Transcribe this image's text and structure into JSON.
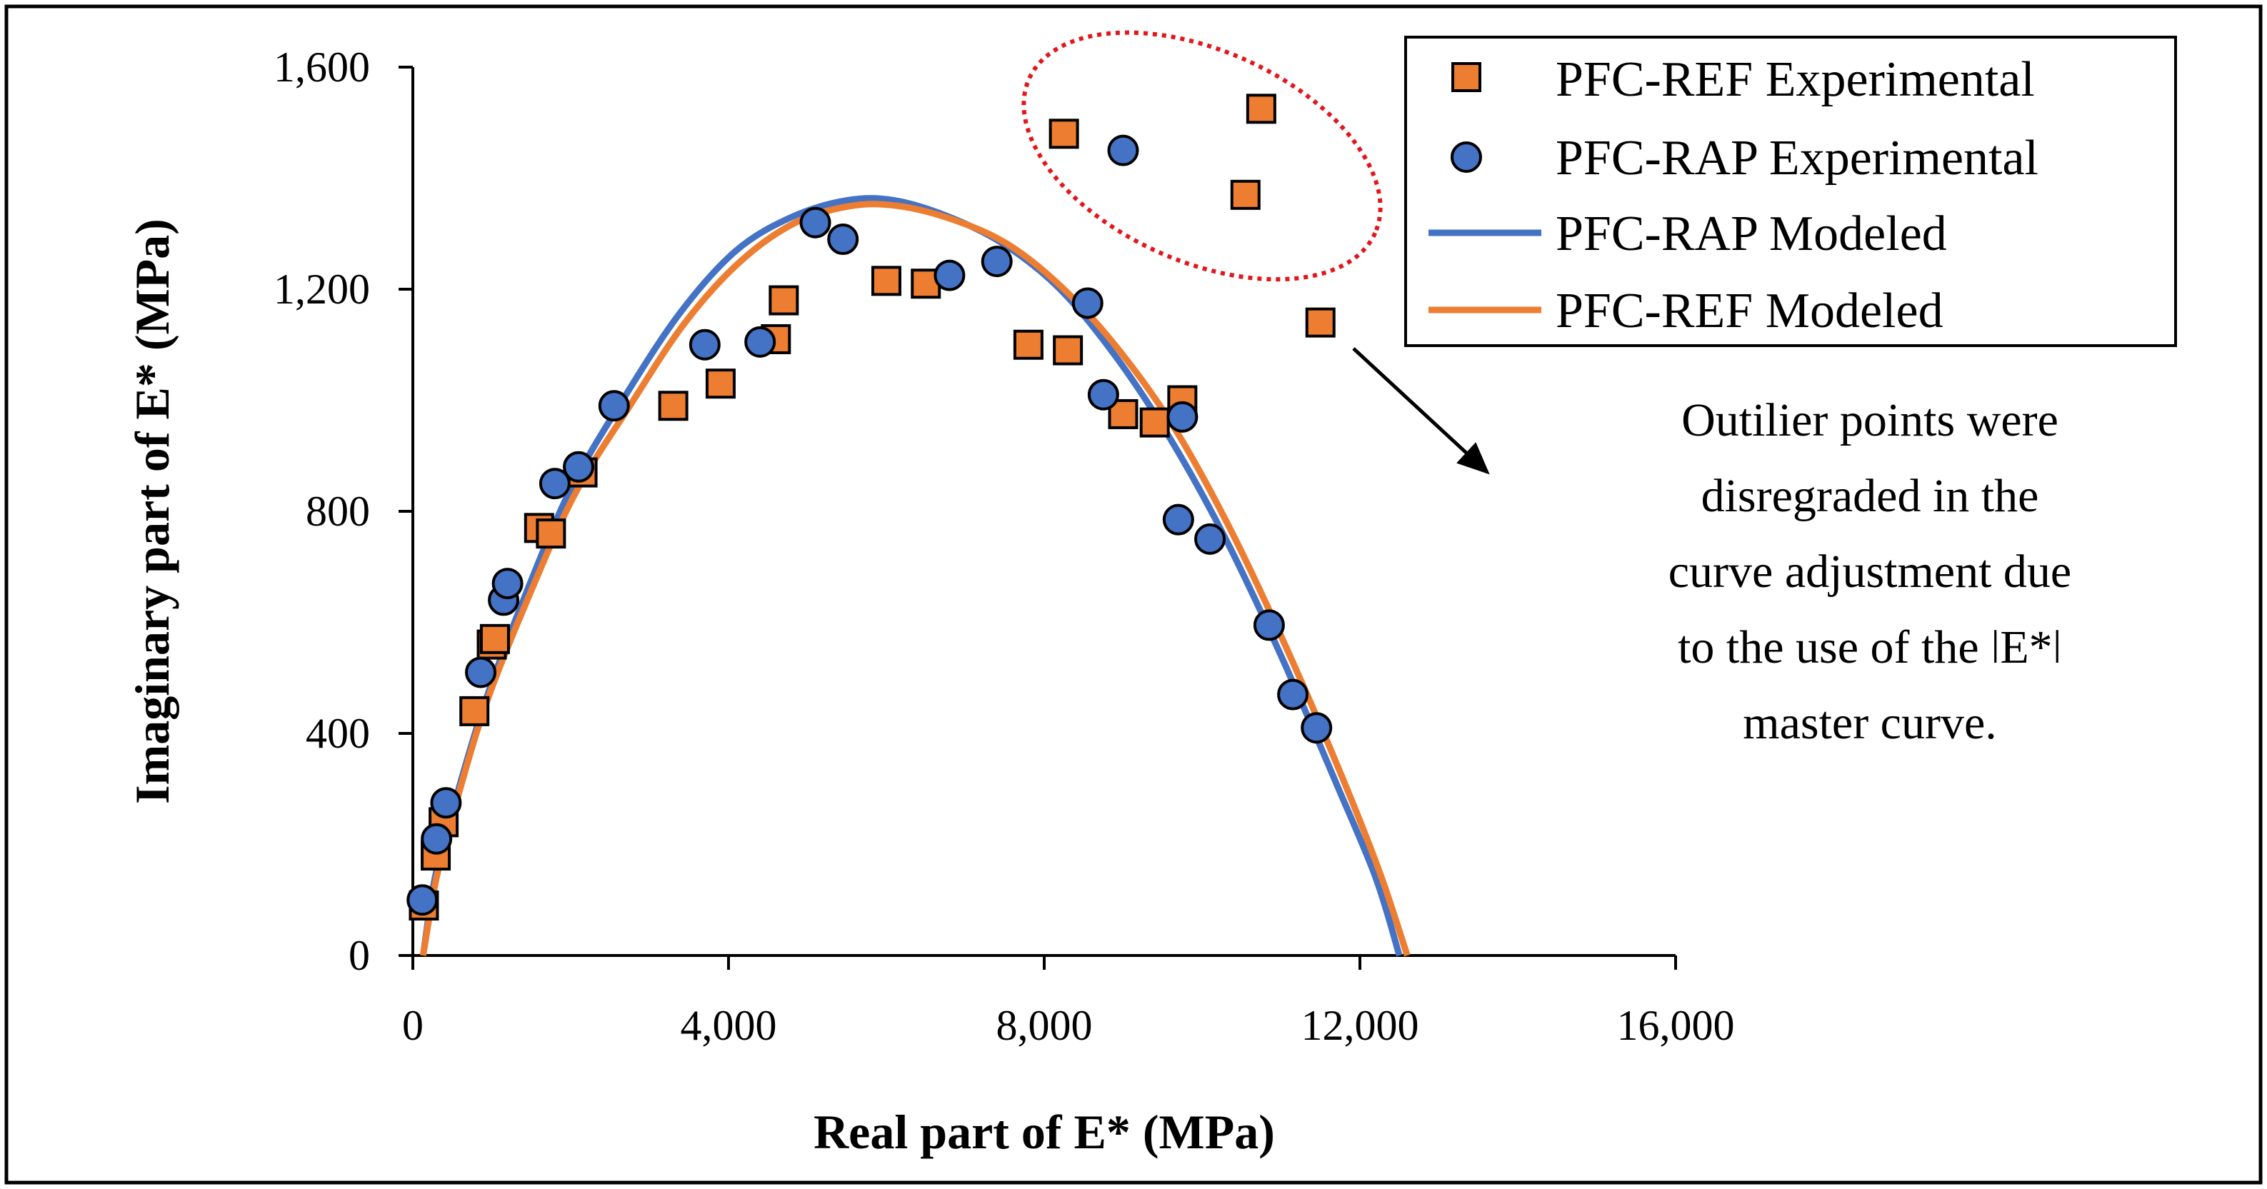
{
  "chart_data": {
    "type": "scatter",
    "xlabel": "Real part of E* (MPa)",
    "ylabel": "Imaginary part of E* (MPa)",
    "xlim": [
      0,
      16000
    ],
    "ylim": [
      0,
      1600
    ],
    "x_ticks": [
      "0",
      "4,000",
      "8,000",
      "12,000",
      "16,000"
    ],
    "y_ticks": [
      "0",
      "400",
      "800",
      "1,200",
      "1,600"
    ],
    "x_tick_values": [
      0,
      4000,
      8000,
      12000,
      16000
    ],
    "y_tick_values": [
      0,
      400,
      800,
      1200,
      1600
    ],
    "series": [
      {
        "name": "PFC-REF Experimental",
        "kind": "markers",
        "marker": "square",
        "color": "#ED7D31",
        "points": [
          [
            140,
            90
          ],
          [
            290,
            180
          ],
          [
            390,
            240
          ],
          [
            780,
            440
          ],
          [
            1000,
            560
          ],
          [
            1040,
            570
          ],
          [
            1600,
            770
          ],
          [
            1750,
            760
          ],
          [
            2150,
            870
          ],
          [
            3300,
            990
          ],
          [
            3900,
            1030
          ],
          [
            4600,
            1110
          ],
          [
            4700,
            1180
          ],
          [
            6000,
            1215
          ],
          [
            6500,
            1210
          ],
          [
            7800,
            1100
          ],
          [
            8300,
            1090
          ],
          [
            9000,
            975
          ],
          [
            9400,
            960
          ],
          [
            9750,
            1000
          ],
          [
            8250,
            1480
          ],
          [
            10550,
            1370
          ],
          [
            10750,
            1525
          ],
          [
            11500,
            1140
          ]
        ]
      },
      {
        "name": "PFC-RAP Experimental",
        "kind": "markers",
        "marker": "circle",
        "color": "#4472C4",
        "points": [
          [
            120,
            100
          ],
          [
            300,
            210
          ],
          [
            420,
            275
          ],
          [
            860,
            510
          ],
          [
            1150,
            640
          ],
          [
            1200,
            670
          ],
          [
            1800,
            850
          ],
          [
            2100,
            880
          ],
          [
            2550,
            990
          ],
          [
            3700,
            1100
          ],
          [
            4400,
            1105
          ],
          [
            5100,
            1320
          ],
          [
            5450,
            1290
          ],
          [
            6800,
            1225
          ],
          [
            7400,
            1250
          ],
          [
            8550,
            1175
          ],
          [
            8750,
            1010
          ],
          [
            9750,
            970
          ],
          [
            9700,
            785
          ],
          [
            10100,
            750
          ],
          [
            10850,
            595
          ],
          [
            11150,
            470
          ],
          [
            11450,
            410
          ],
          [
            9000,
            1450
          ]
        ]
      },
      {
        "name": "PFC-RAP Modeled",
        "kind": "line",
        "color": "#4472C4",
        "points": [
          [
            130,
            0
          ],
          [
            280,
            140
          ],
          [
            500,
            260
          ],
          [
            900,
            450
          ],
          [
            1400,
            640
          ],
          [
            2000,
            840
          ],
          [
            2700,
            1010
          ],
          [
            3400,
            1160
          ],
          [
            4100,
            1270
          ],
          [
            4800,
            1330
          ],
          [
            5500,
            1360
          ],
          [
            6100,
            1360
          ],
          [
            6800,
            1330
          ],
          [
            7500,
            1280
          ],
          [
            8200,
            1200
          ],
          [
            8900,
            1080
          ],
          [
            9600,
            930
          ],
          [
            10300,
            750
          ],
          [
            11000,
            540
          ],
          [
            11700,
            310
          ],
          [
            12200,
            140
          ],
          [
            12500,
            0
          ]
        ]
      },
      {
        "name": "PFC-REF Modeled",
        "kind": "line",
        "color": "#ED7D31",
        "points": [
          [
            130,
            0
          ],
          [
            300,
            140
          ],
          [
            520,
            260
          ],
          [
            920,
            450
          ],
          [
            1450,
            640
          ],
          [
            2050,
            830
          ],
          [
            2750,
            990
          ],
          [
            3450,
            1140
          ],
          [
            4150,
            1250
          ],
          [
            4850,
            1320
          ],
          [
            5550,
            1350
          ],
          [
            6150,
            1350
          ],
          [
            6850,
            1325
          ],
          [
            7550,
            1280
          ],
          [
            8250,
            1200
          ],
          [
            8950,
            1090
          ],
          [
            9650,
            950
          ],
          [
            10350,
            770
          ],
          [
            11050,
            560
          ],
          [
            11750,
            330
          ],
          [
            12250,
            150
          ],
          [
            12600,
            0
          ]
        ]
      }
    ],
    "legend": {
      "position": "top-right",
      "entries": [
        "PFC-REF Experimental",
        "PFC-RAP Experimental",
        "PFC-RAP Modeled",
        "PFC-REF Modeled"
      ]
    },
    "annotation": {
      "lines": [
        "Outilier points were",
        "disregraded in the",
        "curve adjustment due",
        "to the use of the ǀE*ǀ",
        "master curve."
      ],
      "highlight_color": "#E3161B",
      "ellipse_center": [
        10000,
        1440
      ],
      "ellipse_radius": [
        2500,
        190
      ]
    }
  }
}
